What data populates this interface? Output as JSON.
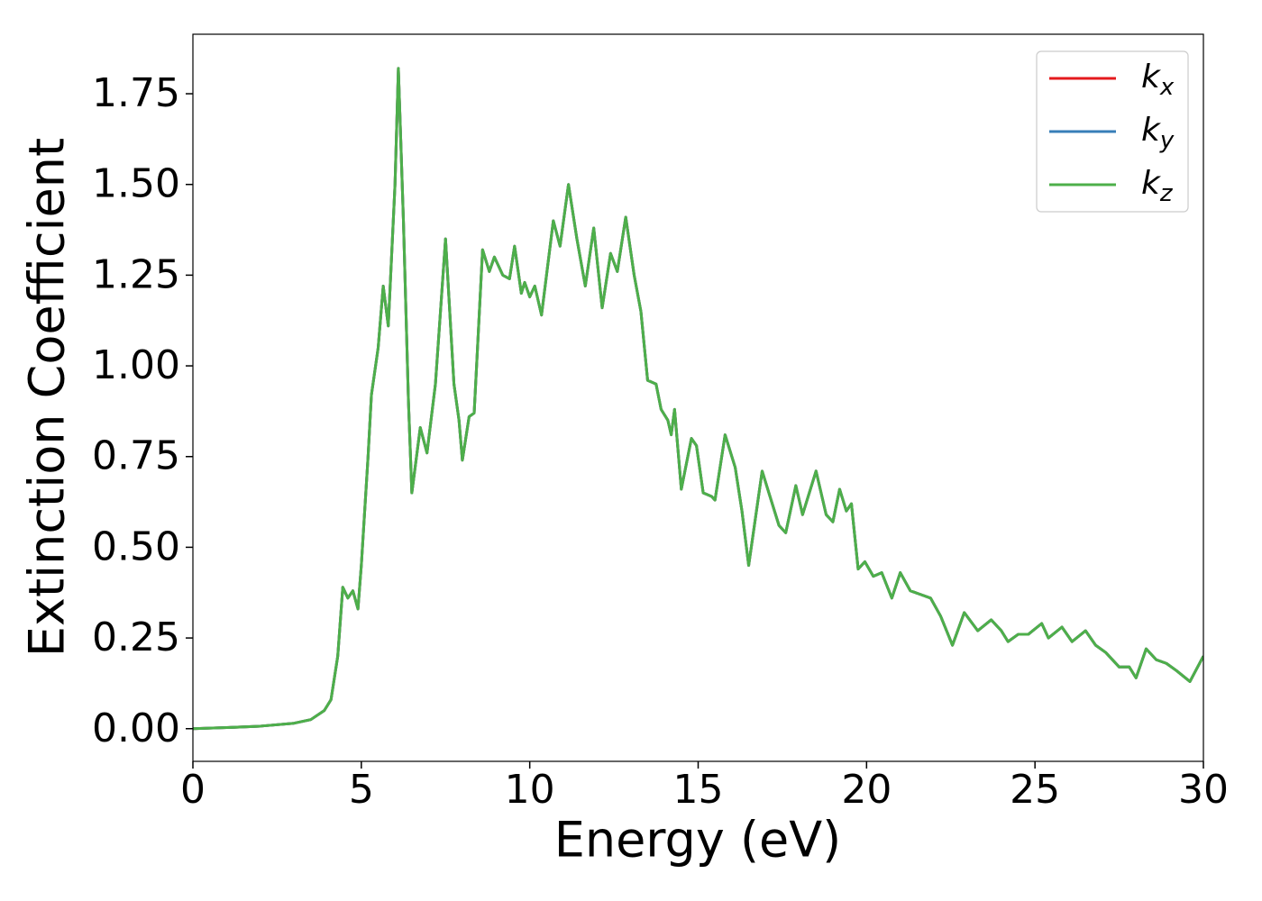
{
  "chart_data": {
    "type": "line",
    "xlabel": "Energy (eV)",
    "ylabel": "Extinction Coefficient",
    "xlim": [
      0,
      30
    ],
    "ylim": [
      -0.09,
      1.914
    ],
    "xticks": [
      0,
      5,
      10,
      15,
      20,
      25,
      30
    ],
    "yticks": [
      {
        "value": 0,
        "label": "0.00"
      },
      {
        "value": 0.25,
        "label": "0.25"
      },
      {
        "value": 0.5,
        "label": "0.50"
      },
      {
        "value": 0.75,
        "label": "0.75"
      },
      {
        "value": 1,
        "label": "1.00"
      },
      {
        "value": 1.25,
        "label": "1.25"
      },
      {
        "value": 1.5,
        "label": "1.50"
      },
      {
        "value": 1.75,
        "label": "1.75"
      }
    ],
    "legend": "upper right",
    "grid": false,
    "x": [
      0,
      1,
      2,
      3,
      3.5,
      3.9,
      4.1,
      4.3,
      4.45,
      4.6,
      4.75,
      4.9,
      5.0,
      5.2,
      5.3,
      5.5,
      5.65,
      5.8,
      6.0,
      6.1,
      6.25,
      6.4,
      6.5,
      6.75,
      6.95,
      7.2,
      7.5,
      7.75,
      7.9,
      8.0,
      8.2,
      8.35,
      8.6,
      8.8,
      8.95,
      9.2,
      9.4,
      9.55,
      9.75,
      9.85,
      10.0,
      10.15,
      10.35,
      10.7,
      10.9,
      11.15,
      11.4,
      11.65,
      11.9,
      12.15,
      12.4,
      12.6,
      12.85,
      13.1,
      13.3,
      13.5,
      13.75,
      13.9,
      14.1,
      14.2,
      14.3,
      14.5,
      14.8,
      14.95,
      15.15,
      15.4,
      15.5,
      15.8,
      16.1,
      16.3,
      16.5,
      16.9,
      17.1,
      17.4,
      17.6,
      17.9,
      18.1,
      18.5,
      18.8,
      19.0,
      19.2,
      19.4,
      19.55,
      19.75,
      19.95,
      20.2,
      20.45,
      20.75,
      21.0,
      21.3,
      21.6,
      21.9,
      22.2,
      22.55,
      22.9,
      23.3,
      23.7,
      24.0,
      24.2,
      24.5,
      24.8,
      25.2,
      25.4,
      25.8,
      26.1,
      26.5,
      26.8,
      27.1,
      27.5,
      27.8,
      28.0,
      28.3,
      28.6,
      28.9,
      29.2,
      29.6,
      30.0
    ],
    "series": [
      {
        "name": "kx",
        "color": "#e41a1c",
        "values": [
          0,
          0.003,
          0.007,
          0.015,
          0.025,
          0.05,
          0.08,
          0.2,
          0.39,
          0.36,
          0.38,
          0.33,
          0.45,
          0.75,
          0.92,
          1.05,
          1.22,
          1.11,
          1.5,
          1.82,
          1.4,
          0.9,
          0.65,
          0.83,
          0.76,
          0.95,
          1.35,
          0.95,
          0.85,
          0.74,
          0.86,
          0.87,
          1.32,
          1.26,
          1.3,
          1.25,
          1.24,
          1.33,
          1.2,
          1.23,
          1.19,
          1.22,
          1.14,
          1.4,
          1.33,
          1.5,
          1.35,
          1.22,
          1.38,
          1.16,
          1.31,
          1.26,
          1.41,
          1.25,
          1.15,
          0.96,
          0.95,
          0.88,
          0.85,
          0.81,
          0.88,
          0.66,
          0.8,
          0.78,
          0.65,
          0.64,
          0.63,
          0.81,
          0.72,
          0.6,
          0.45,
          0.71,
          0.65,
          0.56,
          0.54,
          0.67,
          0.59,
          0.71,
          0.59,
          0.57,
          0.66,
          0.6,
          0.62,
          0.44,
          0.46,
          0.42,
          0.43,
          0.36,
          0.43,
          0.38,
          0.37,
          0.36,
          0.31,
          0.23,
          0.32,
          0.27,
          0.3,
          0.27,
          0.24,
          0.26,
          0.26,
          0.29,
          0.25,
          0.28,
          0.24,
          0.27,
          0.23,
          0.21,
          0.17,
          0.17,
          0.14,
          0.22,
          0.19,
          0.18,
          0.16,
          0.13,
          0.2
        ]
      },
      {
        "name": "ky",
        "color": "#377eb8",
        "values": [
          0,
          0.003,
          0.007,
          0.015,
          0.025,
          0.05,
          0.08,
          0.2,
          0.39,
          0.36,
          0.38,
          0.33,
          0.45,
          0.75,
          0.92,
          1.05,
          1.22,
          1.11,
          1.5,
          1.82,
          1.4,
          0.9,
          0.65,
          0.83,
          0.76,
          0.95,
          1.35,
          0.95,
          0.85,
          0.74,
          0.86,
          0.87,
          1.32,
          1.26,
          1.3,
          1.25,
          1.24,
          1.33,
          1.2,
          1.23,
          1.19,
          1.22,
          1.14,
          1.4,
          1.33,
          1.5,
          1.35,
          1.22,
          1.38,
          1.16,
          1.31,
          1.26,
          1.41,
          1.25,
          1.15,
          0.96,
          0.95,
          0.88,
          0.85,
          0.81,
          0.88,
          0.66,
          0.8,
          0.78,
          0.65,
          0.64,
          0.63,
          0.81,
          0.72,
          0.6,
          0.45,
          0.71,
          0.65,
          0.56,
          0.54,
          0.67,
          0.59,
          0.71,
          0.59,
          0.57,
          0.66,
          0.6,
          0.62,
          0.44,
          0.46,
          0.42,
          0.43,
          0.36,
          0.43,
          0.38,
          0.37,
          0.36,
          0.31,
          0.23,
          0.32,
          0.27,
          0.3,
          0.27,
          0.24,
          0.26,
          0.26,
          0.29,
          0.25,
          0.28,
          0.24,
          0.27,
          0.23,
          0.21,
          0.17,
          0.17,
          0.14,
          0.22,
          0.19,
          0.18,
          0.16,
          0.13,
          0.2
        ]
      },
      {
        "name": "kz",
        "color": "#4daf4a",
        "values": [
          0,
          0.003,
          0.007,
          0.015,
          0.025,
          0.05,
          0.08,
          0.2,
          0.39,
          0.36,
          0.38,
          0.33,
          0.45,
          0.75,
          0.92,
          1.05,
          1.22,
          1.11,
          1.5,
          1.82,
          1.4,
          0.9,
          0.65,
          0.83,
          0.76,
          0.95,
          1.35,
          0.95,
          0.85,
          0.74,
          0.86,
          0.87,
          1.32,
          1.26,
          1.3,
          1.25,
          1.24,
          1.33,
          1.2,
          1.23,
          1.19,
          1.22,
          1.14,
          1.4,
          1.33,
          1.5,
          1.35,
          1.22,
          1.38,
          1.16,
          1.31,
          1.26,
          1.41,
          1.25,
          1.15,
          0.96,
          0.95,
          0.88,
          0.85,
          0.81,
          0.88,
          0.66,
          0.8,
          0.78,
          0.65,
          0.64,
          0.63,
          0.81,
          0.72,
          0.6,
          0.45,
          0.71,
          0.65,
          0.56,
          0.54,
          0.67,
          0.59,
          0.71,
          0.59,
          0.57,
          0.66,
          0.6,
          0.62,
          0.44,
          0.46,
          0.42,
          0.43,
          0.36,
          0.43,
          0.38,
          0.37,
          0.36,
          0.31,
          0.23,
          0.32,
          0.27,
          0.3,
          0.27,
          0.24,
          0.26,
          0.26,
          0.29,
          0.25,
          0.28,
          0.24,
          0.27,
          0.23,
          0.21,
          0.17,
          0.17,
          0.14,
          0.22,
          0.19,
          0.18,
          0.16,
          0.13,
          0.2
        ]
      }
    ]
  }
}
